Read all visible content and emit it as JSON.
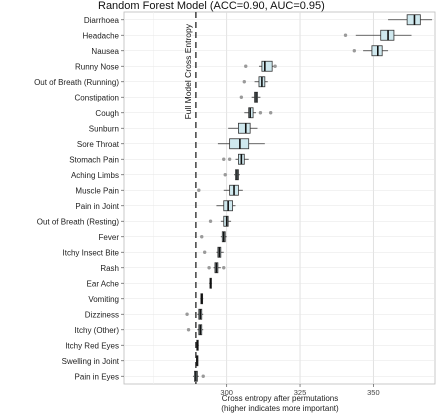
{
  "chart_data": {
    "type": "boxplot",
    "title": "Random Forest Model (ACC=0.90, AUC=0.95)",
    "xlabel_line1": "Cross entropy after permutations",
    "xlabel_line2": "(higher indicates more important)",
    "ylabel": "",
    "xlim": [
      265,
      371
    ],
    "xticks": [
      300,
      325,
      350
    ],
    "reference_line": {
      "value": 289.5,
      "label": "Full Model Cross Entropy"
    },
    "grid": true,
    "box_fill": "#cfe8ee",
    "categories": [
      "Diarrhoea",
      "Headache",
      "Nausea",
      "Runny Nose",
      "Out of Breath (Running)",
      "Constipation",
      "Cough",
      "Sunburn",
      "Sore Throat",
      "Stomach Pain",
      "Aching Limbs",
      "Muscle Pain",
      "Pain in Joint",
      "Out of Breath (Resting)",
      "Fever",
      "Itchy Insect Bite",
      "Rash",
      "Ear Ache",
      "Vomiting",
      "Dizziness",
      "Itchy (Other)",
      "Itchy Red Eyes",
      "Swelling in Joint",
      "Pain in Eyes"
    ],
    "boxes": [
      {
        "min": 355.0,
        "q1": 361.5,
        "median": 364.0,
        "q3": 366.0,
        "max": 370.0,
        "outliers": []
      },
      {
        "min": 344.0,
        "q1": 352.5,
        "median": 355.0,
        "q3": 357.0,
        "max": 363.0,
        "outliers": [
          340.5
        ]
      },
      {
        "min": 346.5,
        "q1": 349.5,
        "median": 351.5,
        "q3": 353.0,
        "max": 355.0,
        "outliers": [
          343.5
        ]
      },
      {
        "min": 311.0,
        "q1": 312.0,
        "median": 313.0,
        "q3": 315.5,
        "max": 317.0,
        "outliers": [
          306.5,
          316.5
        ]
      },
      {
        "min": 309.5,
        "q1": 311.0,
        "median": 312.0,
        "q3": 313.0,
        "max": 314.0,
        "outliers": [
          306.0
        ]
      },
      {
        "min": 308.5,
        "q1": 309.5,
        "median": 310.0,
        "q3": 310.5,
        "max": 311.5,
        "outliers": [
          305.0
        ]
      },
      {
        "min": 306.0,
        "q1": 307.5,
        "median": 308.0,
        "q3": 309.0,
        "max": 310.0,
        "outliers": [
          311.5,
          315.0
        ]
      },
      {
        "min": 300.5,
        "q1": 304.0,
        "median": 306.5,
        "q3": 308.0,
        "max": 310.5,
        "outliers": []
      },
      {
        "min": 297.0,
        "q1": 301.0,
        "median": 304.5,
        "q3": 307.5,
        "max": 313.0,
        "outliers": []
      },
      {
        "min": 303.0,
        "q1": 304.0,
        "median": 305.0,
        "q3": 306.0,
        "max": 307.5,
        "outliers": [
          299.0,
          301.0
        ]
      },
      {
        "min": 302.5,
        "q1": 303.0,
        "median": 303.5,
        "q3": 304.0,
        "max": 304.5,
        "outliers": [
          299.5
        ]
      },
      {
        "min": 299.0,
        "q1": 301.0,
        "median": 302.5,
        "q3": 304.0,
        "max": 305.5,
        "outliers": [
          290.5
        ]
      },
      {
        "min": 296.5,
        "q1": 299.0,
        "median": 300.5,
        "q3": 302.0,
        "max": 303.0,
        "outliers": []
      },
      {
        "min": 298.0,
        "q1": 299.0,
        "median": 300.0,
        "q3": 300.5,
        "max": 301.5,
        "outliers": [
          294.5
        ]
      },
      {
        "min": 298.0,
        "q1": 298.5,
        "median": 299.0,
        "q3": 299.5,
        "max": 300.0,
        "outliers": [
          291.5
        ]
      },
      {
        "min": 296.5,
        "q1": 297.0,
        "median": 297.5,
        "q3": 298.0,
        "max": 299.0,
        "outliers": [
          292.5
        ]
      },
      {
        "min": 295.5,
        "q1": 296.0,
        "median": 296.5,
        "q3": 297.0,
        "max": 298.0,
        "outliers": [
          294.0,
          299.0
        ]
      },
      {
        "min": 294.0,
        "q1": 294.3,
        "median": 294.5,
        "q3": 294.8,
        "max": 295.0,
        "outliers": []
      },
      {
        "min": 291.0,
        "q1": 291.2,
        "median": 291.5,
        "q3": 291.8,
        "max": 292.0,
        "outliers": []
      },
      {
        "min": 290.0,
        "q1": 290.5,
        "median": 291.0,
        "q3": 291.5,
        "max": 292.0,
        "outliers": [
          286.5
        ]
      },
      {
        "min": 290.0,
        "q1": 290.5,
        "median": 291.0,
        "q3": 291.5,
        "max": 292.0,
        "outliers": [
          287.0
        ]
      },
      {
        "min": 289.5,
        "q1": 289.8,
        "median": 290.0,
        "q3": 290.2,
        "max": 290.5,
        "outliers": []
      },
      {
        "min": 289.5,
        "q1": 289.7,
        "median": 289.9,
        "q3": 290.1,
        "max": 290.3,
        "outliers": []
      },
      {
        "min": 288.5,
        "q1": 289.0,
        "median": 289.5,
        "q3": 290.0,
        "max": 290.5,
        "outliers": [
          292.0
        ]
      }
    ]
  }
}
